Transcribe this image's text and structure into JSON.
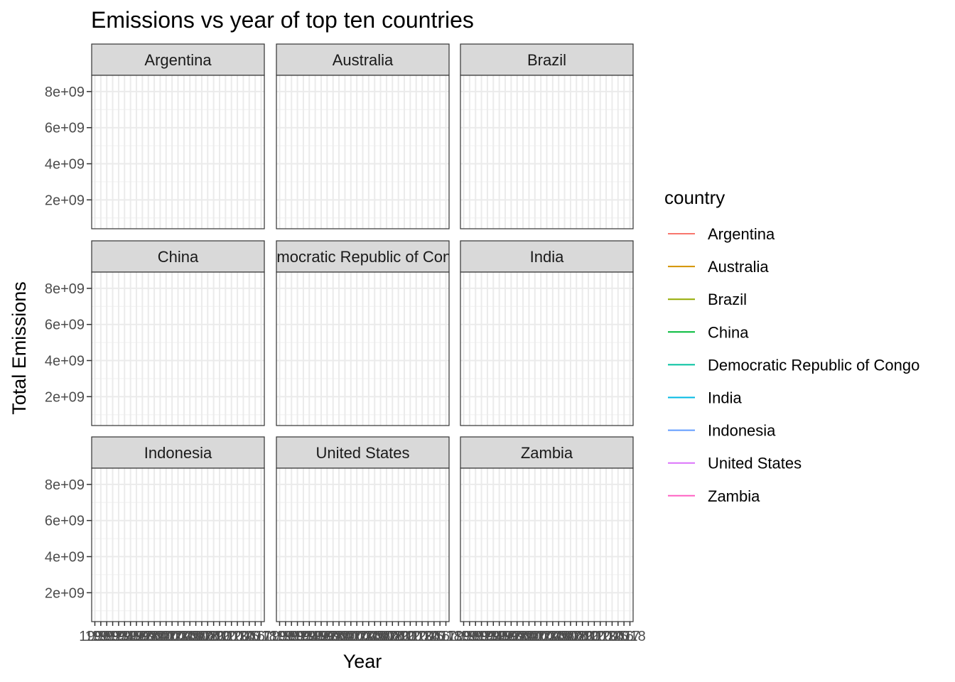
{
  "chart_data": {
    "type": "line",
    "title": "Emissions vs year of top ten countries",
    "xlabel": "Year",
    "ylabel": "Total Emissions",
    "yticks": [
      {
        "value": 2000000000,
        "label": "2e+09"
      },
      {
        "value": 4000000000,
        "label": "4e+09"
      },
      {
        "value": 6000000000,
        "label": "6e+09"
      },
      {
        "value": 8000000000,
        "label": "8e+09"
      }
    ],
    "ylim": [
      400000000,
      8900000000
    ],
    "xlim": [
      1990,
      2018
    ],
    "x_tick_labels": [
      "1990",
      "1991",
      "1992",
      "1993",
      "1994",
      "1995",
      "1996",
      "1997",
      "1998",
      "1999",
      "2000",
      "2001",
      "2002",
      "2003",
      "2004",
      "2005",
      "2006",
      "2007",
      "2008",
      "2009",
      "2010",
      "2011",
      "2012",
      "2013",
      "2014",
      "2015",
      "2016",
      "2017",
      "2018"
    ],
    "grid": true,
    "facets": [
      "Argentina",
      "Australia",
      "Brazil",
      "China",
      "Democratic Republic of Congo",
      "India",
      "Indonesia",
      "United States",
      "Zambia"
    ],
    "legend": {
      "title": "country",
      "position": "right",
      "entries": [
        {
          "name": "Argentina",
          "color": "#F8766D"
        },
        {
          "name": "Australia",
          "color": "#D39200"
        },
        {
          "name": "Brazil",
          "color": "#93AA00"
        },
        {
          "name": "China",
          "color": "#00BA38"
        },
        {
          "name": "Democratic Republic of Congo",
          "color": "#00C19F"
        },
        {
          "name": "India",
          "color": "#00B9E3"
        },
        {
          "name": "Indonesia",
          "color": "#619CFF"
        },
        {
          "name": "United States",
          "color": "#DB72FB"
        },
        {
          "name": "Zambia",
          "color": "#FF61C3"
        }
      ]
    },
    "series": []
  }
}
